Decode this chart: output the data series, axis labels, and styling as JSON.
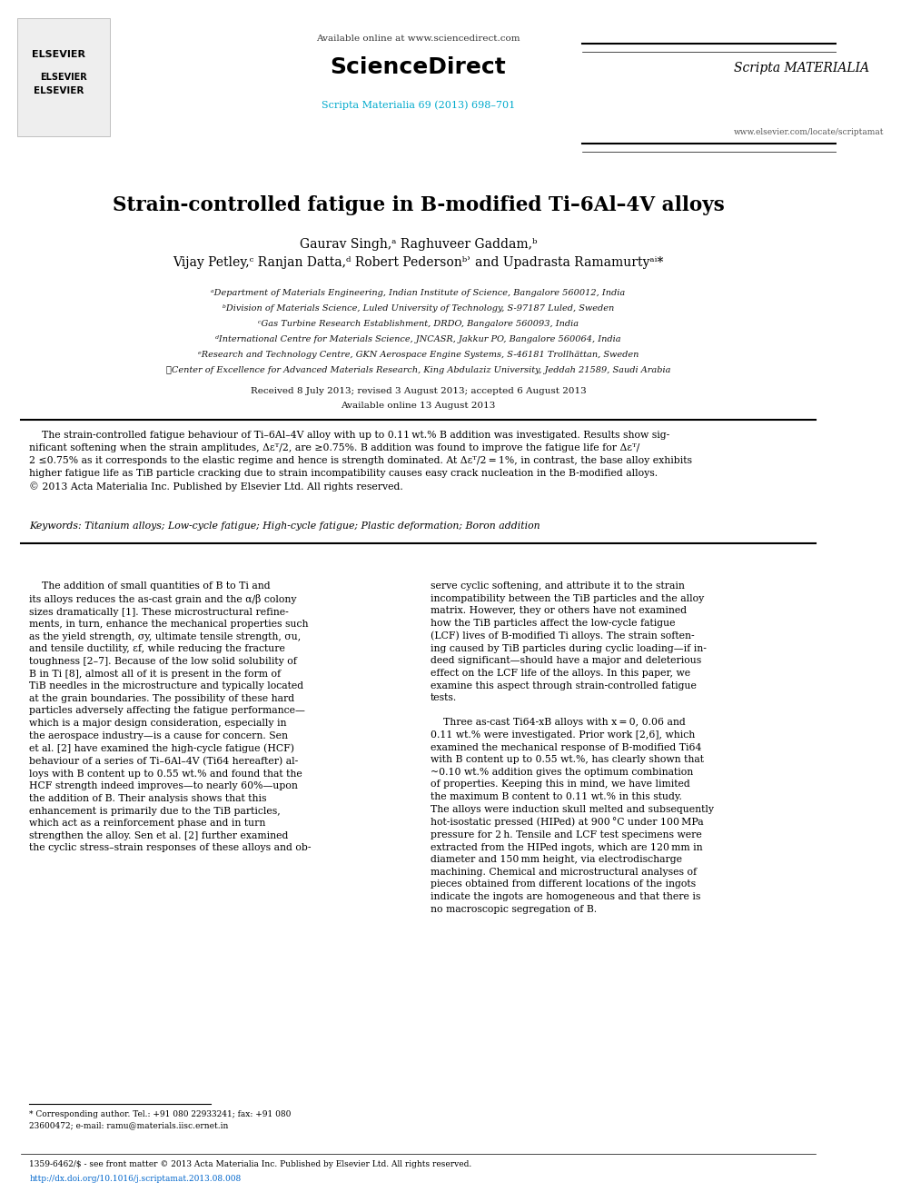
{
  "bg_color": "#ffffff",
  "page_width": 9.92,
  "page_height": 13.23,
  "header_available_online": "Available online at www.sciencedirect.com",
  "header_sciencedirect": "ScienceDirect",
  "header_journal_ref": "Scripta Materialia 69 (2013) 698–701",
  "header_journal_ref_color": "#00aacc",
  "header_url": "www.elsevier.com/locate/scriptamat",
  "title": "Strain-controlled fatigue in B-modified Ti–6Al–4V alloys",
  "authors_line1": "Gaurav Singh, ° Raghuveer Gaddam,ᵇ",
  "authors_line2": "Vijay Petley,ᶜ Ranjan Datta,ᵈ Robert Pedersonᵇʾ and Upadrasta Ramamurtyᵃⁱ*",
  "affil_a": "ᵃDepartment of Materials Engineering, Indian Institute of Science, Bangalore 560012, India",
  "affil_b": "ᵇDivision of Materials Science, Luled University of Technology, S-97187 Luled, Sweden",
  "affil_c": "ᶜGas Turbine Research Establishment, DRDO, Bangalore 560093, India",
  "affil_d": "ᵈInternational Centre for Materials Science, JNCASR, Jakkur PO, Bangalore 560064, India",
  "affil_e": "ᵉResearch and Technology Centre, GKN Aerospace Engine Systems, S-46181 Trollhättan, Sweden",
  "affil_f": "ၦCenter of Excellence for Advanced Materials Research, King Abdulaziz University, Jeddah 21589, Saudi Arabia",
  "received_line": "Received 8 July 2013; revised 3 August 2013; accepted 6 August 2013",
  "available_online": "Available online 13 August 2013",
  "abstract_text": "The strain-controlled fatigue behaviour of Ti–6Al–4V alloy with up to 0.11 wt.% B addition was investigated. Results show significant softening when the strain amplitudes, ΔεT/2, are ≥0.75%. B addition was found to improve the fatigue life for ΔεT/2 ≤0.75% as it corresponds to the elastic regime and hence is strength dominated. At ΔεT/2 = 1%, in contrast, the base alloy exhibits higher fatigue life as TiB particle cracking due to strain incompatibility causes easy crack nucleation in the B-modified alloys.\n© 2013 Acta Materialia Inc. Published by Elsevier Ltd. All rights reserved.",
  "keywords_label": "Keywords:",
  "keywords_text": "Titanium alloys; Low-cycle fatigue; High-cycle fatigue; Plastic deformation; Boron addition",
  "body_col1_para1": "The addition of small quantities of B to Ti and its alloys reduces the as-cast grain and the α/β colony sizes dramatically [1]. These microstructural refinements, in turn, enhance the mechanical properties such as the yield strength, σy, ultimate tensile strength, σu, and tensile ductility, εf, while reducing the fracture toughness [2–7]. Because of the low solid solubility of B in Ti [8], almost all of it is present in the form of TiB needles in the microstructure and typically located at the grain boundaries. The possibility of these hard particles adversely affecting the fatigue performance—which is a major design consideration, especially in the aerospace industry—is a cause for concern. Sen et al. [2] have examined the high-cycle fatigue (HCF) behaviour of a series of Ti–6Al–4V (Ti64 hereafter) alloys with B content up to 0.55 wt.% and found that the HCF strength indeed improves—to nearly 60%—upon the addition of B. Their analysis shows that this enhancement is primarily due to the TiB particles, which act as a reinforcement phase and in turn strengthen the alloy. Sen et al. [2] further examined the cyclic stress–strain responses of these alloys and ob-",
  "body_col2_para1": "serve cyclic softening, and attribute it to the strain incompatibility between the TiB particles and the alloy matrix. However, they or others have not examined how the TiB particles affect the low-cycle fatigue (LCF) lives of B-modified Ti alloys. The strain softening caused by TiB particles during cyclic loading—if indeed significant—should have a major and deleterious effect on the LCF life of the alloys. In this paper, we examine this aspect through strain-controlled fatigue tests.",
  "body_col2_para2": "Three as-cast Ti64-xB alloys with x = 0, 0.06 and 0.11 wt.% were investigated. Prior work [2,6], which examined the mechanical response of B-modified Ti64 with B content up to 0.55 wt.%, has clearly shown that ~0.10 wt.% addition gives the optimum combination of properties. Keeping this in mind, we have limited the maximum B content to 0.11 wt.% in this study. The alloys were induction skull melted and subsequently hot-isostatic pressed (HIPed) at 900 °C under 100 MPa pressure for 2 h. Tensile and LCF test specimens were extracted from the HIPed ingots, which are 120 mm in diameter and 150 mm height, via electrodischarge machining. Chemical and microstructural analyses of pieces obtained from different locations of the ingots indicate the ingots are homogeneous and that there is no macroscopic segregation of B.",
  "footnote_star": "* Corresponding author. Tel.: +91 080 22933241; fax: +91 080 23600472; e-mail: ramu@materials.iisc.ernet.in",
  "footer_issn": "1359-6462/$ - see front matter © 2013 Acta Materialia Inc. Published by Elsevier Ltd. All rights reserved.",
  "footer_doi": "http://dx.doi.org/10.1016/j.scriptamat.2013.08.008",
  "footer_doi_color": "#0066cc",
  "text_color": "#000000",
  "link_color": "#00aacc",
  "affil_color": "#333333"
}
